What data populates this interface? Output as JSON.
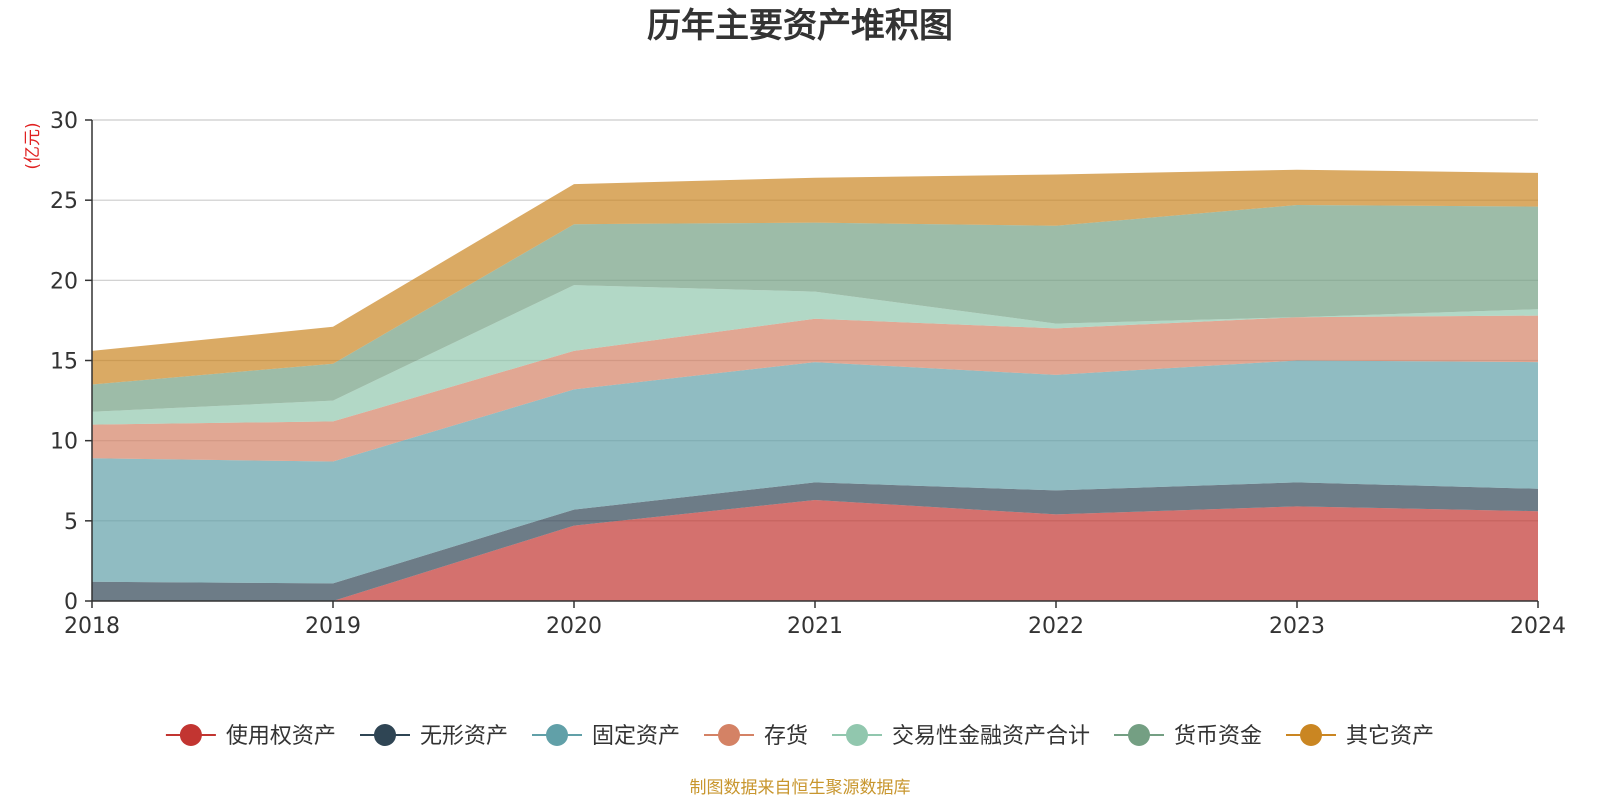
{
  "chart_data": {
    "type": "area",
    "stacked": true,
    "title": "历年主要资产堆积图",
    "unit": "(亿元)",
    "x": [
      "2018",
      "2019",
      "2020",
      "2021",
      "2022",
      "2023",
      "2024"
    ],
    "ylim": [
      0,
      30
    ],
    "yticks": [
      "0",
      "5",
      "10",
      "15",
      "20",
      "25",
      "30"
    ],
    "grid": true,
    "legend_position": "bottom",
    "series": [
      {
        "name": "使用权资产",
        "color": "#c23531",
        "values": [
          0,
          0,
          4.7,
          6.3,
          5.4,
          5.9,
          5.6
        ]
      },
      {
        "name": "无形资产",
        "color": "#2f4554",
        "values": [
          1.2,
          1.1,
          1.0,
          1.1,
          1.5,
          1.5,
          1.4
        ]
      },
      {
        "name": "固定资产",
        "color": "#61a0a8",
        "values": [
          7.7,
          7.6,
          7.5,
          7.5,
          7.2,
          7.6,
          7.9
        ]
      },
      {
        "name": "存货",
        "color": "#d48265",
        "values": [
          2.1,
          2.5,
          2.4,
          2.7,
          2.9,
          2.7,
          2.9
        ]
      },
      {
        "name": "交易性金融资产合计",
        "color": "#91c7ae",
        "values": [
          0.8,
          1.3,
          4.1,
          1.7,
          0.3,
          0.0,
          0.4
        ]
      },
      {
        "name": "货币资金",
        "color": "#749f83",
        "values": [
          1.7,
          2.3,
          3.8,
          4.3,
          6.1,
          7.0,
          6.4
        ]
      },
      {
        "name": "其它资产",
        "color": "#ca8622",
        "values": [
          2.1,
          2.3,
          2.5,
          2.8,
          3.2,
          2.2,
          2.1
        ]
      }
    ]
  },
  "footer": {
    "source": "制图数据来自恒生聚源数据库"
  }
}
